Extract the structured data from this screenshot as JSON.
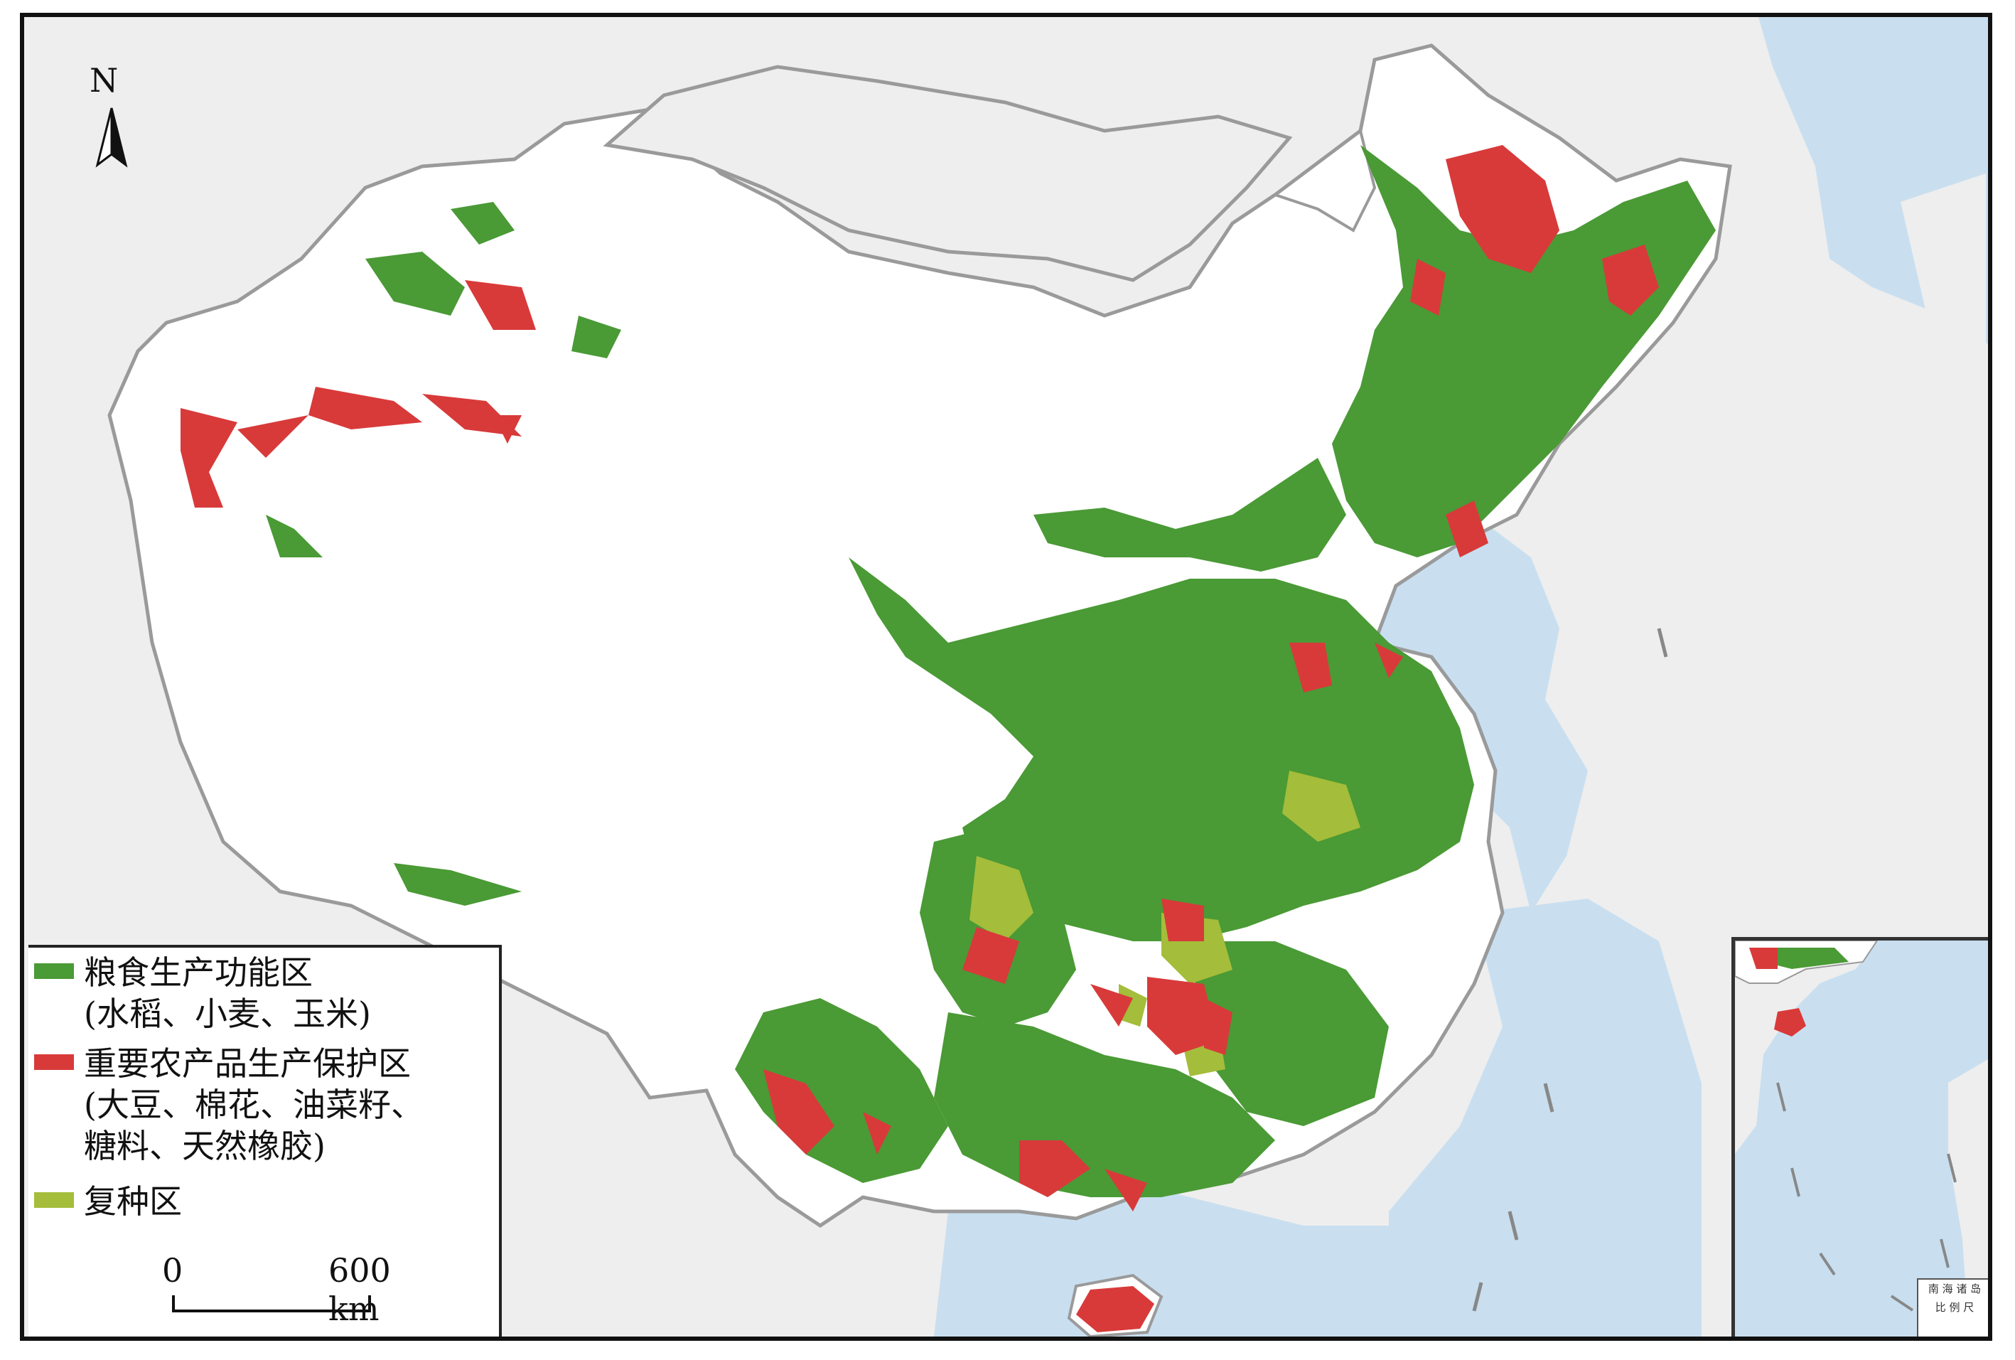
{
  "map": {
    "north_label": "N",
    "legend": [
      {
        "color": "#4a9a35",
        "text": "粮食生产功能区\n(水稻、小麦、玉米)"
      },
      {
        "color": "#d83a3a",
        "text": "重要农产品生产保护区\n(大豆、棉花、油菜籽、\n糖料、天然橡胶)"
      },
      {
        "color": "#a4bd3a",
        "text": "复种区"
      }
    ],
    "scale": {
      "start": "0",
      "end": "600 km"
    },
    "inset": {
      "caption_title": "南 海 诸 岛",
      "caption_sub": "比 例 尺"
    },
    "colors": {
      "sea": "#c9dff0",
      "land_outside": "#eeeeee",
      "china_land": "#ffffff",
      "border": "#9a9a9a",
      "grain": "#4a9a35",
      "protect": "#d83a3a",
      "multi": "#a4bd3a"
    }
  }
}
